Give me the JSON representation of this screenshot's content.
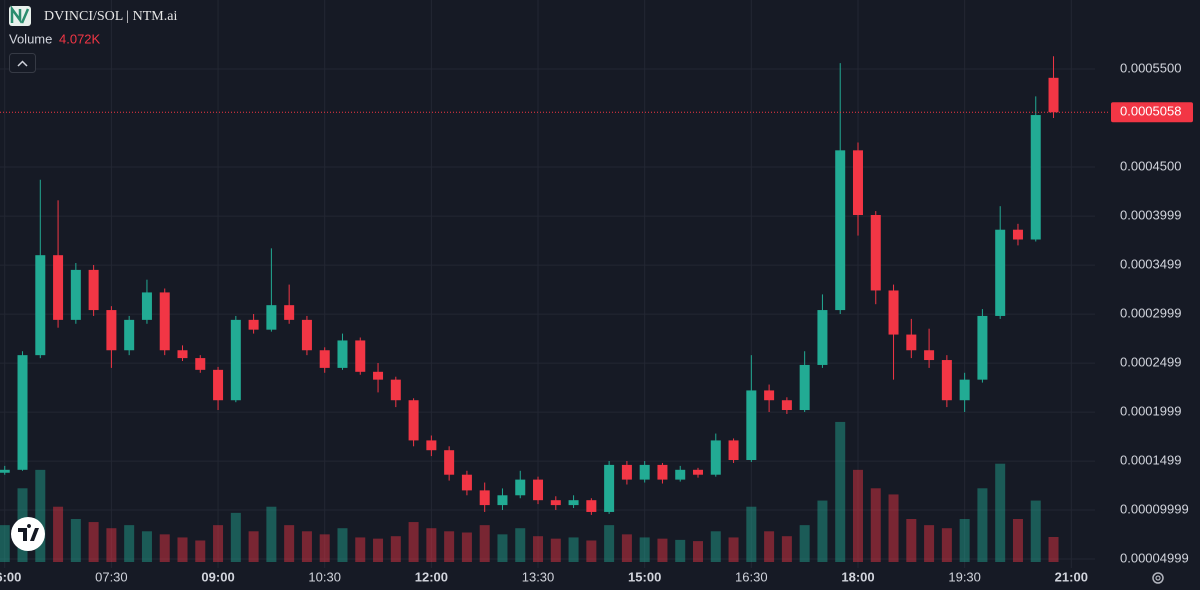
{
  "header": {
    "pair": "DVINCI/SOL | NTM.ai",
    "volume_title": "Volume"
  },
  "chart_data": {
    "type": "candlestick",
    "x": [
      "06:00",
      "06:15",
      "06:30",
      "06:45",
      "07:00",
      "07:15",
      "07:30",
      "07:45",
      "08:00",
      "08:15",
      "08:30",
      "08:45",
      "09:00",
      "09:15",
      "09:30",
      "09:45",
      "10:00",
      "10:15",
      "10:30",
      "10:45",
      "11:00",
      "11:15",
      "11:30",
      "11:45",
      "12:00",
      "12:15",
      "12:30",
      "12:45",
      "13:00",
      "13:15",
      "13:30",
      "13:45",
      "14:00",
      "14:15",
      "14:30",
      "14:45",
      "15:00",
      "15:15",
      "15:30",
      "15:45",
      "16:00",
      "16:15",
      "16:30",
      "16:45",
      "17:00",
      "17:15",
      "17:30",
      "17:45",
      "18:00",
      "18:15",
      "18:30",
      "18:45",
      "19:00",
      "19:15",
      "19:30",
      "19:45",
      "20:00",
      "20:15",
      "20:30",
      "20:45"
    ],
    "open": [
      0.000138,
      0.000141,
      0.000258,
      0.00036,
      0.000294,
      0.000345,
      0.000304,
      0.000263,
      0.000294,
      0.000322,
      0.000263,
      0.000255,
      0.000243,
      0.000212,
      0.000294,
      0.000284,
      0.000309,
      0.000294,
      0.000263,
      0.000245,
      0.000273,
      0.000241,
      0.000233,
      0.000212,
      0.000171,
      0.000161,
      0.000136,
      0.00012,
      0.000105,
      0.000115,
      0.000131,
      0.00011,
      0.000105,
      0.00011,
      9.8e-05,
      0.000146,
      0.000131,
      0.000146,
      0.000131,
      0.000141,
      0.000136,
      0.000171,
      0.000151,
      0.000222,
      0.000212,
      0.000202,
      0.000248,
      0.000304,
      0.000467,
      0.000401,
      0.000324,
      0.000279,
      0.000263,
      0.000253,
      0.000212,
      0.000233,
      0.000298,
      0.000386,
      0.000376,
      0.000541
    ],
    "high": [
      0.000145,
      0.000262,
      0.000437,
      0.000416,
      0.000352,
      0.00035,
      0.000308,
      0.000298,
      0.000335,
      0.000326,
      0.000268,
      0.000258,
      0.000246,
      0.000298,
      0.0003,
      0.000367,
      0.00033,
      0.000298,
      0.000266,
      0.00028,
      0.000276,
      0.00025,
      0.000236,
      0.000214,
      0.000176,
      0.000165,
      0.00014,
      0.000128,
      0.000122,
      0.00014,
      0.000134,
      0.000114,
      0.000115,
      0.000112,
      0.00015,
      0.00015,
      0.00015,
      0.000148,
      0.000145,
      0.000143,
      0.000178,
      0.000173,
      0.000258,
      0.000228,
      0.000215,
      0.000262,
      0.00032,
      0.000556,
      0.000475,
      0.000405,
      0.00033,
      0.000295,
      0.000285,
      0.000258,
      0.00024,
      0.000305,
      0.00041,
      0.000392,
      0.000522,
      0.000563
    ],
    "low": [
      0.000136,
      0.00014,
      0.000255,
      0.000286,
      0.00029,
      0.000298,
      0.000245,
      0.000258,
      0.00029,
      0.000258,
      0.000252,
      0.00024,
      0.000202,
      0.00021,
      0.00028,
      0.000282,
      0.00029,
      0.000258,
      0.00024,
      0.000243,
      0.000238,
      0.00022,
      0.000205,
      0.000165,
      0.000155,
      0.00013,
      0.000115,
      9.8e-05,
      0.0001,
      0.000112,
      0.000106,
      0.0001,
      0.000102,
      9.5e-05,
      9.6e-05,
      0.000126,
      0.000128,
      0.000127,
      0.000129,
      0.000133,
      0.000134,
      0.000148,
      0.000149,
      0.0002,
      0.000198,
      0.0002,
      0.000245,
      0.0003,
      0.00038,
      0.00031,
      0.000233,
      0.000255,
      0.000245,
      0.000205,
      0.0002,
      0.00023,
      0.000295,
      0.00037,
      0.000374,
      0.0005
    ],
    "close": [
      0.000141,
      0.000258,
      0.00036,
      0.000294,
      0.000345,
      0.000304,
      0.000263,
      0.000294,
      0.000322,
      0.000263,
      0.000255,
      0.000243,
      0.000212,
      0.000294,
      0.000284,
      0.000309,
      0.000294,
      0.000263,
      0.000245,
      0.000273,
      0.000241,
      0.000233,
      0.000212,
      0.000171,
      0.000161,
      0.000136,
      0.00012,
      0.000105,
      0.000115,
      0.000131,
      0.00011,
      0.000105,
      0.00011,
      9.8e-05,
      0.000146,
      0.000131,
      0.000146,
      0.000131,
      0.000141,
      0.000136,
      0.000171,
      0.000151,
      0.000222,
      0.000212,
      0.000202,
      0.000248,
      0.000304,
      0.000467,
      0.000401,
      0.000324,
      0.000279,
      0.000263,
      0.000253,
      0.000212,
      0.000233,
      0.000298,
      0.000386,
      0.000376,
      0.000503,
      0.0005058
    ],
    "volume": [
      6000,
      12000,
      15000,
      9000,
      7000,
      6500,
      5500,
      6000,
      5000,
      4500,
      4000,
      3500,
      6000,
      8000,
      5000,
      9000,
      6000,
      5000,
      4500,
      5500,
      4000,
      3800,
      4200,
      6500,
      5500,
      5000,
      4800,
      6000,
      4500,
      5500,
      4200,
      3800,
      4000,
      3500,
      6000,
      4500,
      4000,
      3800,
      3600,
      3400,
      5000,
      4000,
      9000,
      5000,
      4200,
      6000,
      10000,
      22800,
      15000,
      12000,
      11000,
      7000,
      6000,
      5500,
      7000,
      12000,
      16000,
      7000,
      10000,
      4072
    ],
    "volume_last_label": "4.072K",
    "up_color": "#22ab94",
    "down_color": "#f23645",
    "xlim": [
      "05:56",
      "21:20"
    ],
    "xticks": [
      "06:00",
      "07:30",
      "09:00",
      "10:30",
      "12:00",
      "13:30",
      "15:00",
      "16:30",
      "18:00",
      "19:30",
      "21:00"
    ],
    "ylim": [
      4.08e-05,
      0.0006204
    ],
    "yticks": [
      {
        "value": 0.00055,
        "label": "0.0005500"
      },
      {
        "value": 0.00045,
        "label": "0.0004500"
      },
      0.0003999,
      0.0003499,
      0.0002999,
      0.0002499,
      0.0001999,
      0.0001499,
      9.999e-05,
      4.999e-05
    ],
    "volume_lim": [
      0,
      35000
    ],
    "grid": true
  }
}
